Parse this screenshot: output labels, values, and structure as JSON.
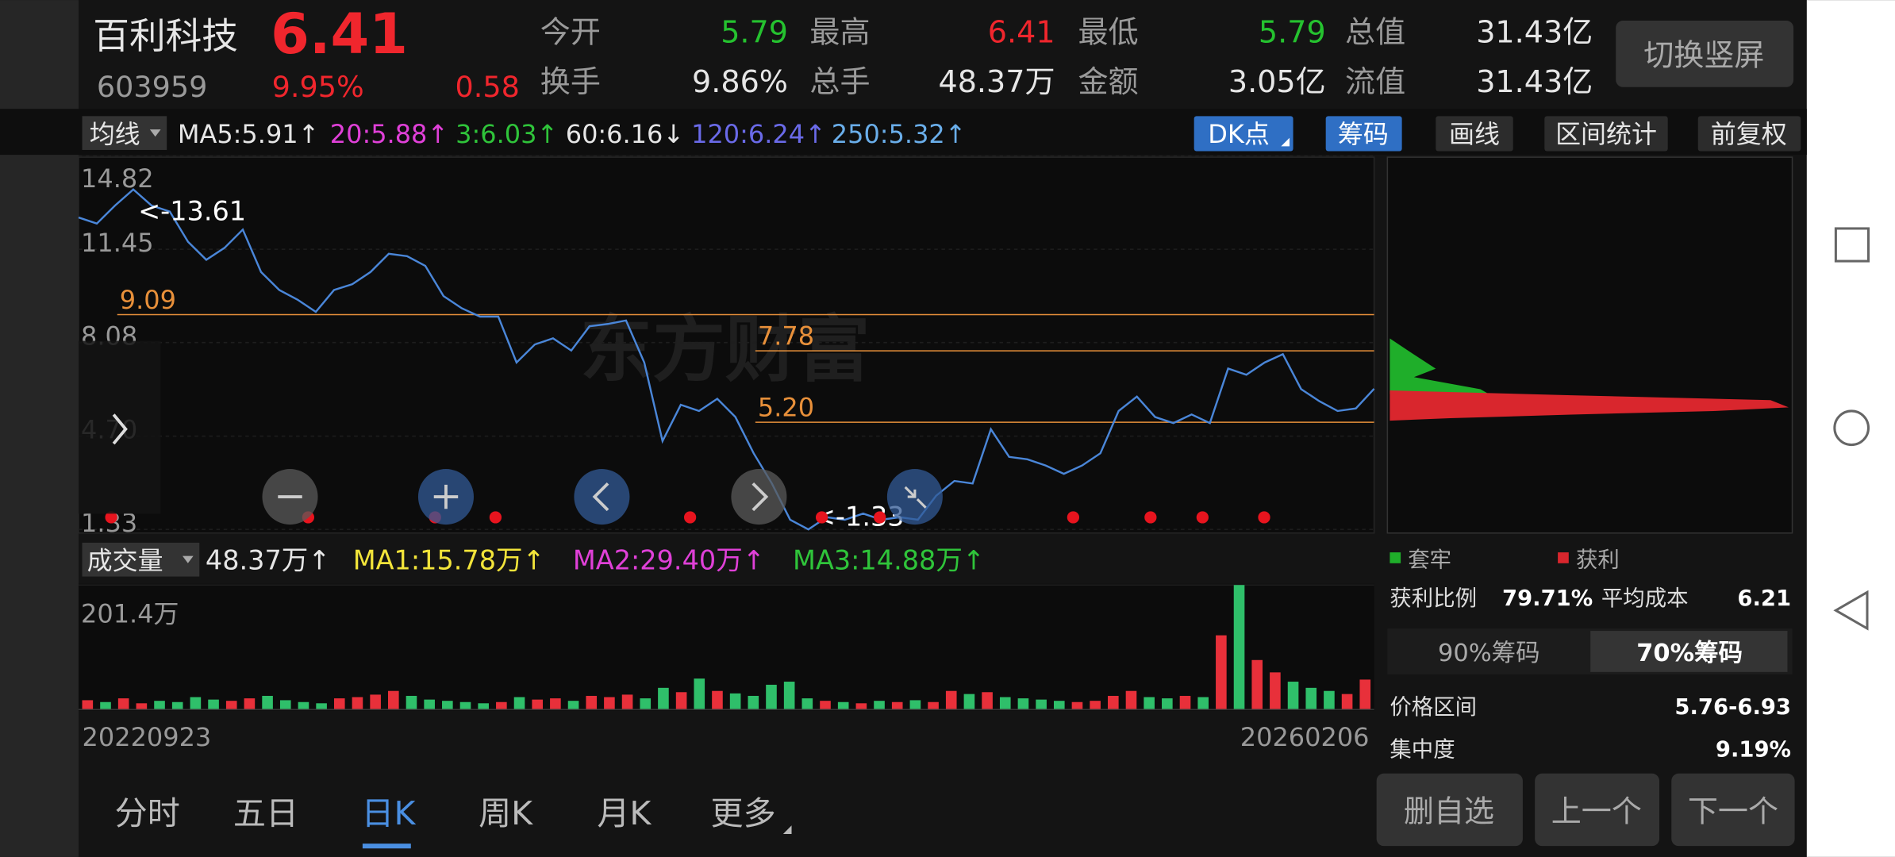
{
  "header": {
    "name": "百利科技",
    "price": "6.41",
    "code": "603959",
    "change_pct": "9.95%",
    "change": "0.58",
    "stats": [
      {
        "label": "今开",
        "value": "5.79"
      },
      {
        "label": "最高",
        "value": "6.41"
      },
      {
        "label": "最低",
        "value": "5.79"
      },
      {
        "label": "总值",
        "value": "31.43亿"
      },
      {
        "label": "换手",
        "value": "9.86%"
      },
      {
        "label": "总手",
        "value": "48.37万"
      },
      {
        "label": "金额",
        "value": "3.05亿"
      },
      {
        "label": "流值",
        "value": "31.43亿"
      }
    ],
    "rotate_button": "切换竖屏"
  },
  "ma_bar": {
    "selector": "均线",
    "items": [
      "MA5:5.91↑",
      "20:5.88↑",
      "3:6.03↑",
      "60:6.16↓",
      "120:6.24↑",
      "250:5.32↑"
    ],
    "buttons": [
      "DK点",
      "筹码",
      "画线",
      "区间统计",
      "前复权"
    ]
  },
  "volume_bar": {
    "selector": "成交量",
    "items": [
      "48.37万↑",
      "MA1:15.78万↑",
      "MA2:29.40万↑",
      "MA3:14.88万↑"
    ]
  },
  "watermark": "东方财富",
  "chart_data": [
    {
      "type": "line",
      "color": "#4a86d8",
      "ylim": [
        1.33,
        14.82
      ],
      "yticks": [
        14.82,
        11.45,
        8.08,
        {
          "value": 4.7,
          "label": "4.70"
        },
        1.33
      ],
      "levels": [
        9.09,
        7.78,
        {
          "value": 5.2,
          "label": "5.20"
        }
      ],
      "level_color": "#e8903a",
      "annotations": [
        "<-13.61",
        "<-1.33"
      ],
      "values": [
        12.6,
        12.38,
        13.03,
        13.61,
        13.03,
        12.81,
        11.72,
        11.07,
        11.5,
        12.16,
        10.63,
        9.98,
        9.63,
        9.19,
        9.98,
        10.19,
        10.63,
        11.29,
        11.2,
        10.85,
        9.76,
        9.32,
        9.02,
        9.02,
        7.36,
        8.01,
        8.23,
        7.79,
        8.67,
        8.75,
        8.88,
        7.36,
        4.52,
        5.83,
        5.61,
        6.05,
        5.39,
        4.08,
        2.99,
        1.68,
        1.33,
        1.77,
        1.68,
        1.9,
        1.68,
        1.77,
        1.68,
        2.55,
        3.08,
        2.99,
        4.95,
        3.95,
        3.86,
        3.64,
        3.34,
        3.64,
        4.08,
        5.61,
        6.13,
        5.39,
        5.17,
        5.48,
        5.17,
        7.14,
        6.92,
        7.36,
        7.66,
        6.4,
        5.96,
        5.61,
        5.7,
        6.41
      ]
    },
    {
      "type": "bar",
      "ylim": [
        0,
        201.4
      ],
      "yticks": [
        {
          "value": 201.4,
          "label": "201.4万"
        }
      ],
      "up_color": "#e8303a",
      "down_color": "#2fbf6a",
      "x_axis_labels": [
        "20220923",
        "20260206"
      ],
      "values": [
        15,
        12,
        18,
        10,
        14,
        12,
        20,
        16,
        14,
        18,
        22,
        15,
        12,
        10,
        18,
        20,
        24,
        30,
        22,
        16,
        14,
        12,
        10,
        12,
        20,
        16,
        18,
        14,
        22,
        20,
        24,
        18,
        35,
        28,
        50,
        30,
        26,
        22,
        40,
        45,
        18,
        14,
        12,
        10,
        14,
        12,
        15,
        12,
        30,
        25,
        28,
        20,
        18,
        16,
        14,
        12,
        14,
        22,
        30,
        20,
        18,
        22,
        20,
        120,
        201.4,
        80,
        60,
        45,
        35,
        30,
        25,
        48.37
      ]
    }
  ],
  "chip_panel": {
    "legend": [
      "套牢",
      "获利"
    ],
    "profit_ratio_label": "获利比例",
    "profit_ratio": "79.71%",
    "avg_cost_label": "平均成本",
    "avg_cost": "6.21",
    "tabs": [
      "90%筹码",
      "70%筹码"
    ],
    "price_range_label": "价格区间",
    "price_range": "5.76-6.93",
    "concentration_label": "集中度",
    "concentration": "9.19%"
  },
  "actions": [
    "删自选",
    "上一个",
    "下一个"
  ],
  "tabs": [
    "分时",
    "五日",
    "日K",
    "周K",
    "月K",
    "更多"
  ]
}
